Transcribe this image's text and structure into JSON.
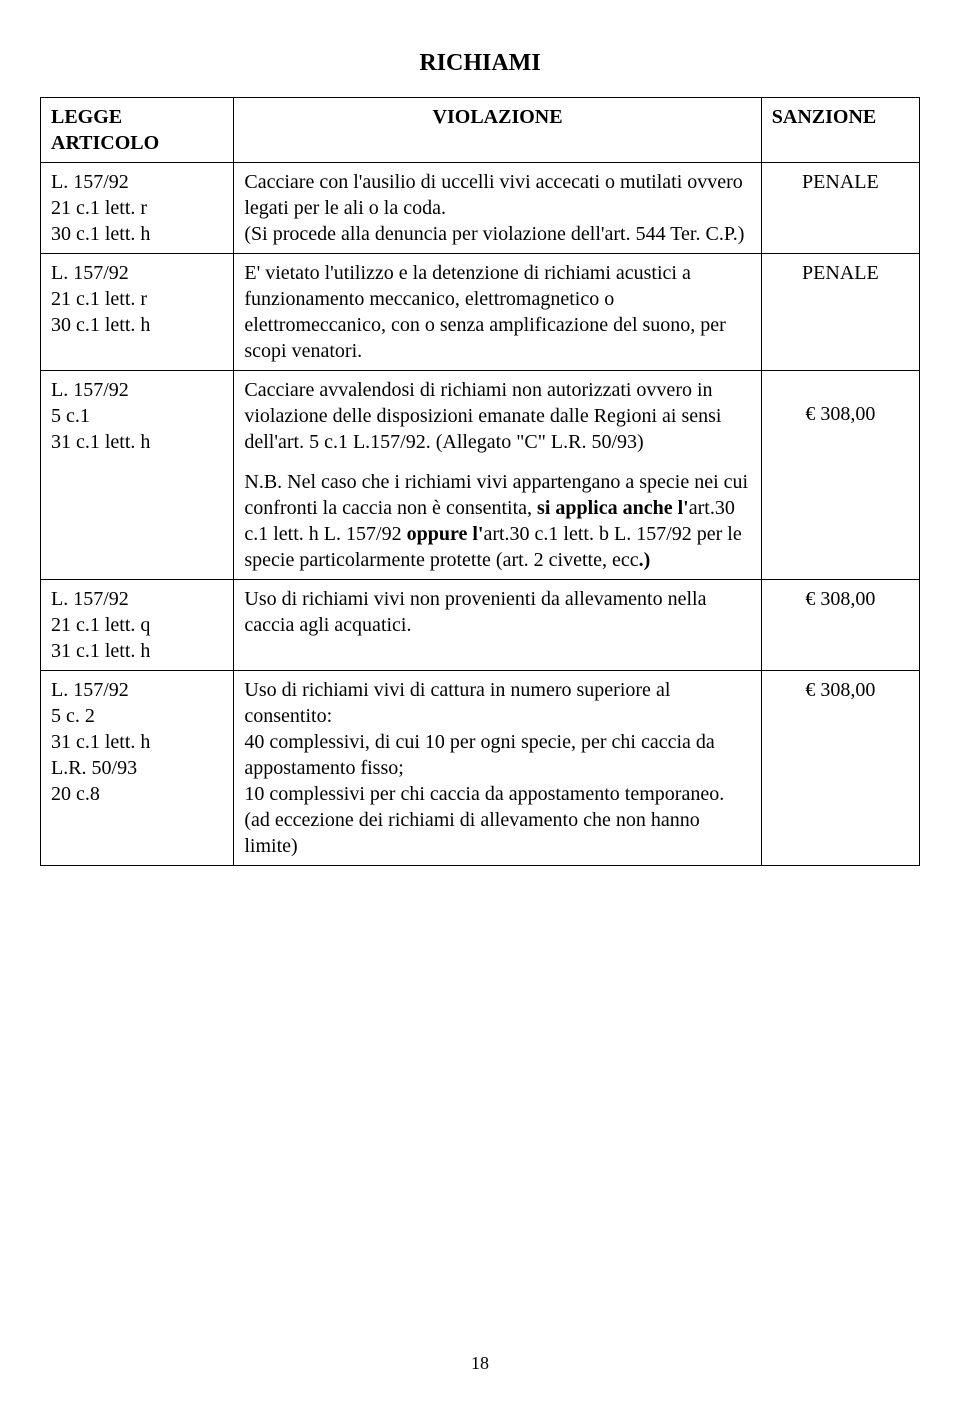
{
  "title": "RICHIAMI",
  "headers": {
    "legge": "LEGGE\nARTICOLO",
    "violazione": "VIOLAZIONE",
    "sanzione": "SANZIONE"
  },
  "rows": [
    {
      "legge": "L. 157/92\n21 c.1 lett. r\n30 c.1 lett. h",
      "violazione": "Cacciare con l'ausilio di uccelli vivi accecati o mutilati ovvero legati per le ali o la coda.\n(Si procede alla denuncia per violazione dell'art. 544 Ter. C.P.)",
      "sanzione": "PENALE"
    },
    {
      "legge": "L. 157/92\n21 c.1 lett. r\n30 c.1 lett. h",
      "violazione": "E' vietato l'utilizzo e la detenzione di richiami acustici a funzionamento meccanico, elettromagnetico o elettromeccanico, con o senza amplificazione del suono, per scopi venatori.",
      "sanzione": "PENALE"
    },
    {
      "legge": "L. 157/92\n5 c.1\n31 c.1 lett. h",
      "violazione": "Cacciare avvalendosi di richiami non autorizzati ovvero in violazione delle disposizioni emanate dalle Regioni ai sensi dell'art. 5 c.1 L.157/92. (Allegato \"C\" L.R. 50/93)",
      "nb_prefix": "N.B. Nel caso che i richiami vivi appartengano a specie nei cui confronti la caccia non è consentita, ",
      "nb_bold1": "si applica anche l'",
      "nb_mid1": "art.30 c.1 lett. h L. 157/92 ",
      "nb_bold2": "oppure l'",
      "nb_mid2": "art.30 c.1 lett. b  L. 157/92 per le specie particolarmente protette (art. 2 civette, ecc",
      "nb_bold3": ".)",
      "sanzione": "€ 308,00"
    },
    {
      "legge": "L. 157/92\n21 c.1 lett. q\n31 c.1 lett. h",
      "violazione": "Uso di richiami vivi non provenienti da allevamento nella caccia agli acquatici.",
      "sanzione": "€ 308,00"
    },
    {
      "legge": "L. 157/92\n5 c. 2\n31 c.1 lett. h\nL.R. 50/93\n20 c.8",
      "violazione": "Uso di richiami vivi di cattura in numero superiore al consentito:\n40 complessivi, di cui 10 per ogni specie, per chi caccia da appostamento fisso;\n10 complessivi per chi caccia da appostamento temporaneo. (ad eccezione dei richiami di allevamento che non hanno limite)",
      "sanzione": "€ 308,00"
    }
  ],
  "page_number": "18"
}
